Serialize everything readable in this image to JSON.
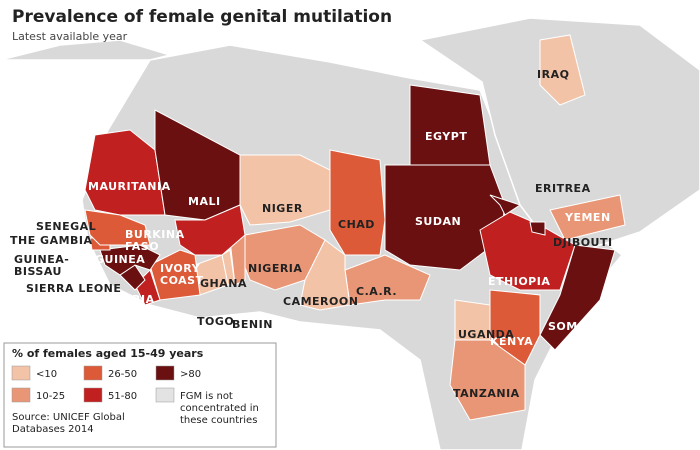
{
  "title": "Prevalence of female genital mutilation",
  "subtitle": "Latest available year",
  "legend": {
    "title": "% of females aged 15-49 years",
    "items": [
      {
        "label": [
          "<10"
        ],
        "color": "#f3c3a7"
      },
      {
        "label": [
          "10-25"
        ],
        "color": "#e99676"
      },
      {
        "label": [
          "26-50"
        ],
        "color": "#dc5a38"
      },
      {
        "label": [
          "51-80"
        ],
        "color": "#c0201f"
      },
      {
        "label": [
          ">80"
        ],
        "color": "#6a1010"
      },
      {
        "label": [
          "FGM is not",
          "concentrated in",
          "these countries"
        ],
        "color": "#e3e3e3"
      }
    ],
    "source": [
      "Source: UNICEF Global",
      "Databases 2014"
    ]
  },
  "countries": [
    {
      "name": [
        "MAURITANIA"
      ],
      "category": 3
    },
    {
      "name": [
        "MALI"
      ],
      "category": 4
    },
    {
      "name": [
        "NIGER"
      ],
      "category": 0
    },
    {
      "name": [
        "CHAD"
      ],
      "category": 2
    },
    {
      "name": [
        "SUDAN"
      ],
      "category": 4
    },
    {
      "name": [
        "EGYPT"
      ],
      "category": 4
    },
    {
      "name": [
        "ERITREA"
      ],
      "category": 4
    },
    {
      "name": [
        "ETHIOPIA"
      ],
      "category": 3
    },
    {
      "name": [
        "DJIBOUTI"
      ],
      "category": 4
    },
    {
      "name": [
        "SOMALIA"
      ],
      "category": 4
    },
    {
      "name": [
        "KENYA"
      ],
      "category": 2
    },
    {
      "name": [
        "UGANDA"
      ],
      "category": 0
    },
    {
      "name": [
        "TANZANIA"
      ],
      "category": 1
    },
    {
      "name": [
        "C.A.R."
      ],
      "category": 1
    },
    {
      "name": [
        "CAMEROON"
      ],
      "category": 0
    },
    {
      "name": [
        "NIGERIA"
      ],
      "category": 1
    },
    {
      "name": [
        "BENIN"
      ],
      "category": 1
    },
    {
      "name": [
        "TOGO"
      ],
      "category": 0
    },
    {
      "name": [
        "GHANA"
      ],
      "category": 0
    },
    {
      "name": [
        "BURKINA",
        "FASO"
      ],
      "category": 3
    },
    {
      "name": [
        "IVORY",
        "COAST"
      ],
      "category": 2
    },
    {
      "name": [
        "LIBERIA"
      ],
      "category": 3
    },
    {
      "name": [
        "SIERRA LEONE"
      ],
      "category": 4
    },
    {
      "name": [
        "GUINEA"
      ],
      "category": 4
    },
    {
      "name": [
        "GUINEA-",
        "BISSAU"
      ],
      "category": 2
    },
    {
      "name": [
        "THE GAMBIA"
      ],
      "category": 3
    },
    {
      "name": [
        "SENEGAL"
      ],
      "category": 2
    },
    {
      "name": [
        "YEMEN"
      ],
      "category": 1
    },
    {
      "name": [
        "IRAQ"
      ],
      "category": 0
    }
  ]
}
